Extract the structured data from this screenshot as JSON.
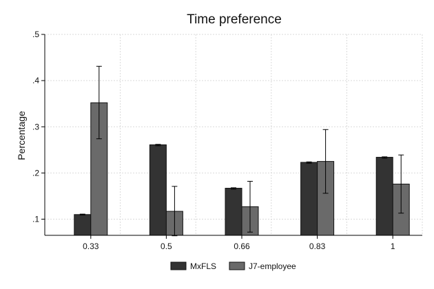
{
  "chart_data": {
    "type": "bar",
    "title": "Time preference",
    "xlabel": "",
    "ylabel": "Percentage",
    "categories": [
      "0.33",
      "0.5",
      "0.66",
      "0.83",
      "1"
    ],
    "ylim": [
      0.065,
      0.5
    ],
    "yticks": [
      0.1,
      0.2,
      0.3,
      0.4,
      0.5
    ],
    "ytick_labels": [
      ".1",
      ".2",
      ".3",
      ".4",
      ".5"
    ],
    "grid": true,
    "legend_position": "bottom",
    "series": [
      {
        "name": "MxFLS",
        "color": "#333333",
        "values": [
          0.11,
          0.261,
          0.167,
          0.223,
          0.234
        ],
        "err_low": [
          0.109,
          0.259,
          0.165,
          0.221,
          0.232
        ],
        "err_high": [
          0.111,
          0.262,
          0.168,
          0.224,
          0.235
        ]
      },
      {
        "name": "J7-employee",
        "color": "#6a6a6a",
        "values": [
          0.352,
          0.117,
          0.127,
          0.225,
          0.176
        ],
        "err_low": [
          0.274,
          0.064,
          0.072,
          0.156,
          0.113
        ],
        "err_high": [
          0.431,
          0.171,
          0.182,
          0.294,
          0.239
        ]
      }
    ]
  }
}
